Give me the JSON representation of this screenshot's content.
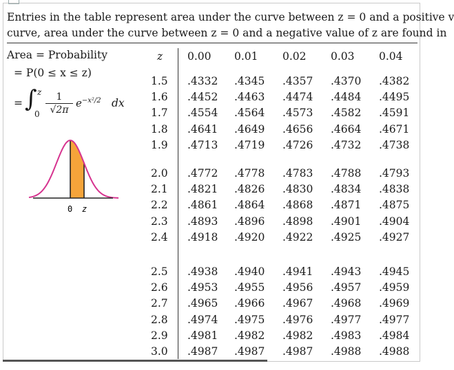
{
  "intro": {
    "line1": "Entries in the table represent area under the curve between z = 0 and a positive v",
    "line2": "curve, area under the curve between z = 0 and a negative value of z are found in"
  },
  "formula": {
    "area": "Area = Probability",
    "prob": "= P(0 ≤ x ≤ z)",
    "eq": "=",
    "integral": "∫",
    "upper": "z",
    "lower": "0",
    "numerator": "1",
    "denominator": "√2π",
    "exp_base": "e",
    "exp_sup": "−x²/2",
    "dx": "dx"
  },
  "curve_labels": {
    "zero": "0",
    "z": "z"
  },
  "colors": {
    "curve": "#d6338f",
    "shade": "#f5a43a",
    "rule": "#333333"
  },
  "table": {
    "z_header": "z",
    "columns": [
      "0.00",
      "0.01",
      "0.02",
      "0.03",
      "0.04"
    ],
    "groups": [
      {
        "rows": [
          {
            "z": "1.5",
            "vals": [
              ".4332",
              ".4345",
              ".4357",
              ".4370",
              ".4382"
            ]
          },
          {
            "z": "1.6",
            "vals": [
              ".4452",
              ".4463",
              ".4474",
              ".4484",
              ".4495"
            ]
          },
          {
            "z": "1.7",
            "vals": [
              ".4554",
              ".4564",
              ".4573",
              ".4582",
              ".4591"
            ]
          },
          {
            "z": "1.8",
            "vals": [
              ".4641",
              ".4649",
              ".4656",
              ".4664",
              ".4671"
            ]
          },
          {
            "z": "1.9",
            "vals": [
              ".4713",
              ".4719",
              ".4726",
              ".4732",
              ".4738"
            ]
          }
        ]
      },
      {
        "rows": [
          {
            "z": "2.0",
            "vals": [
              ".4772",
              ".4778",
              ".4783",
              ".4788",
              ".4793"
            ]
          },
          {
            "z": "2.1",
            "vals": [
              ".4821",
              ".4826",
              ".4830",
              ".4834",
              ".4838"
            ]
          },
          {
            "z": "2.2",
            "vals": [
              ".4861",
              ".4864",
              ".4868",
              ".4871",
              ".4875"
            ]
          },
          {
            "z": "2.3",
            "vals": [
              ".4893",
              ".4896",
              ".4898",
              ".4901",
              ".4904"
            ]
          },
          {
            "z": "2.4",
            "vals": [
              ".4918",
              ".4920",
              ".4922",
              ".4925",
              ".4927"
            ]
          }
        ]
      },
      {
        "rows": [
          {
            "z": "2.5",
            "vals": [
              ".4938",
              ".4940",
              ".4941",
              ".4943",
              ".4945"
            ]
          },
          {
            "z": "2.6",
            "vals": [
              ".4953",
              ".4955",
              ".4956",
              ".4957",
              ".4959"
            ]
          },
          {
            "z": "2.7",
            "vals": [
              ".4965",
              ".4966",
              ".4967",
              ".4968",
              ".4969"
            ]
          },
          {
            "z": "2.8",
            "vals": [
              ".4974",
              ".4975",
              ".4976",
              ".4977",
              ".4977"
            ]
          },
          {
            "z": "2.9",
            "vals": [
              ".4981",
              ".4982",
              ".4982",
              ".4983",
              ".4984"
            ]
          },
          {
            "z": "3.0",
            "vals": [
              ".4987",
              ".4987",
              ".4987",
              ".4988",
              ".4988"
            ]
          }
        ]
      }
    ]
  }
}
